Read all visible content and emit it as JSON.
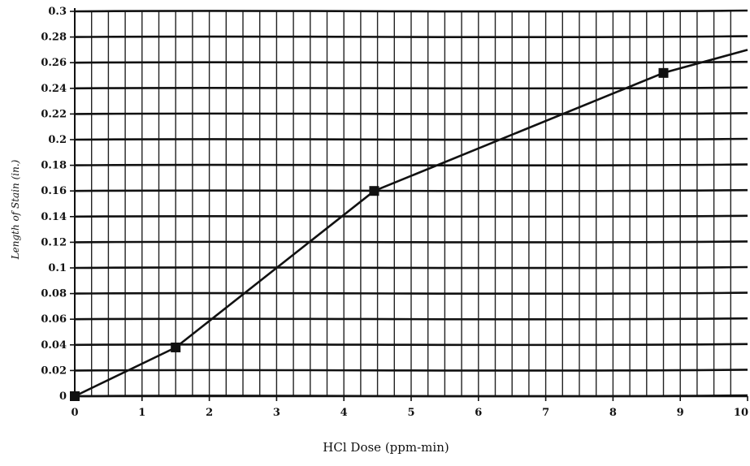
{
  "chart_data": {
    "type": "line",
    "title": "",
    "xlabel": "HCl Dose (ppm-min)",
    "ylabel": "Length of Stain (in.)",
    "xlim": [
      0,
      10
    ],
    "ylim": [
      0,
      0.3
    ],
    "x_ticks": [
      "0",
      "1",
      "2",
      "3",
      "4",
      "5",
      "6",
      "7",
      "8",
      "9",
      "10"
    ],
    "y_ticks": [
      "0",
      "0.02",
      "0.04",
      "0.06",
      "0.08",
      "0.1",
      "0.12",
      "0.14",
      "0.16",
      "0.18",
      "0.2",
      "0.22",
      "0.24",
      "0.26",
      "0.28",
      "0.3"
    ],
    "grid": true,
    "x_minor_step": 0.25,
    "series": [
      {
        "name": "",
        "color": "#111111",
        "marker": "square",
        "line": [
          [
            0,
            0
          ],
          [
            1.5,
            0.038
          ],
          [
            4.45,
            0.16
          ],
          [
            8.75,
            0.252
          ],
          [
            10,
            0.27
          ]
        ],
        "points": [
          [
            0,
            0
          ],
          [
            1.5,
            0.038
          ],
          [
            4.45,
            0.16
          ],
          [
            8.75,
            0.252
          ]
        ]
      }
    ]
  }
}
